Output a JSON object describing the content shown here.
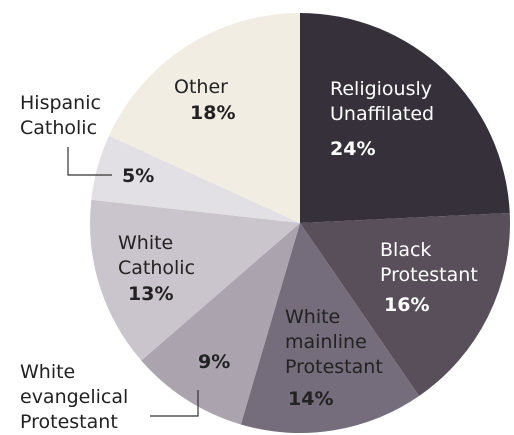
{
  "chart_data": {
    "type": "pie",
    "title": "",
    "slices": [
      {
        "label": [
          "Religiously",
          "Unaffilated"
        ],
        "value": 24,
        "value_label": "24%",
        "color": "#35303a",
        "text": "light"
      },
      {
        "label": [
          "Black",
          "Protestant"
        ],
        "value": 16,
        "value_label": "16%",
        "color": "#584f5a",
        "text": "light"
      },
      {
        "label": [
          "White",
          "mainline",
          "Protestant"
        ],
        "value": 14,
        "value_label": "14%",
        "color": "#766d7c",
        "text": "dark"
      },
      {
        "label": [
          "White",
          "evangelical",
          "Protestant"
        ],
        "value": 9,
        "value_label": "9%",
        "color": "#aba3ad",
        "text": "dark"
      },
      {
        "label": [
          "White",
          "Catholic"
        ],
        "value": 13,
        "value_label": "13%",
        "color": "#cac4cc",
        "text": "dark"
      },
      {
        "label": [
          "Hispanic",
          "Catholic"
        ],
        "value": 5,
        "value_label": "5%",
        "color": "#e2e0e4",
        "text": "dark"
      },
      {
        "label": [
          "Other"
        ],
        "value": 18,
        "value_label": "18%",
        "color": "#f1ede3",
        "text": "dark"
      }
    ]
  }
}
